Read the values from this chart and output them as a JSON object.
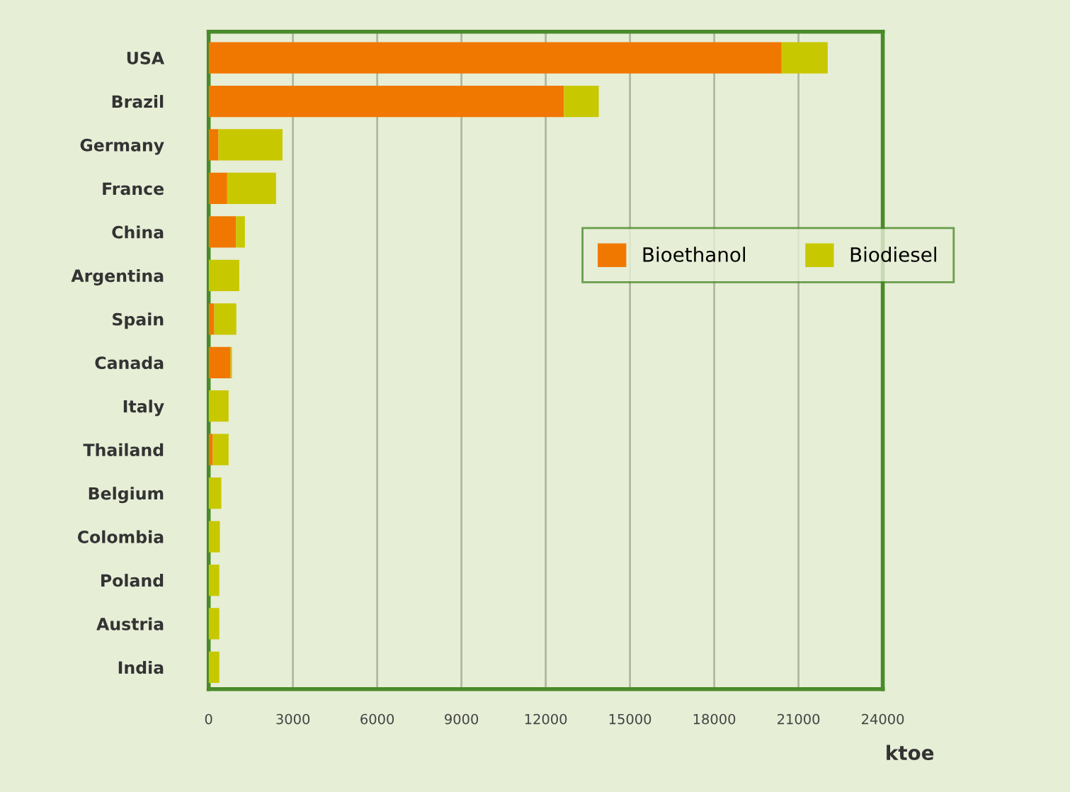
{
  "chart_data": {
    "type": "bar",
    "orientation": "horizontal",
    "stacked": true,
    "categories": [
      "USA",
      "Brazil",
      "Germany",
      "France",
      "China",
      "Argentina",
      "Spain",
      "Canada",
      "Italy",
      "Thailand",
      "Belgium",
      "Colombia",
      "Poland",
      "Austria",
      "India"
    ],
    "series": [
      {
        "name": "Bioethanol",
        "color": "#f07800",
        "values": [
          20400,
          12650,
          350,
          660,
          980,
          0,
          200,
          780,
          0,
          150,
          0,
          0,
          0,
          0,
          0
        ]
      },
      {
        "name": "Biodiesel",
        "color": "#c8c800",
        "values": [
          1640,
          1240,
          2280,
          1740,
          310,
          1090,
          785,
          50,
          710,
          560,
          450,
          400,
          380,
          380,
          380
        ]
      }
    ],
    "xlabel": "ktoe",
    "xlim": [
      0,
      24000
    ],
    "xticks": [
      0,
      3000,
      6000,
      9000,
      12000,
      15000,
      18000,
      21000,
      24000
    ],
    "grid": "x",
    "legend": "right"
  }
}
